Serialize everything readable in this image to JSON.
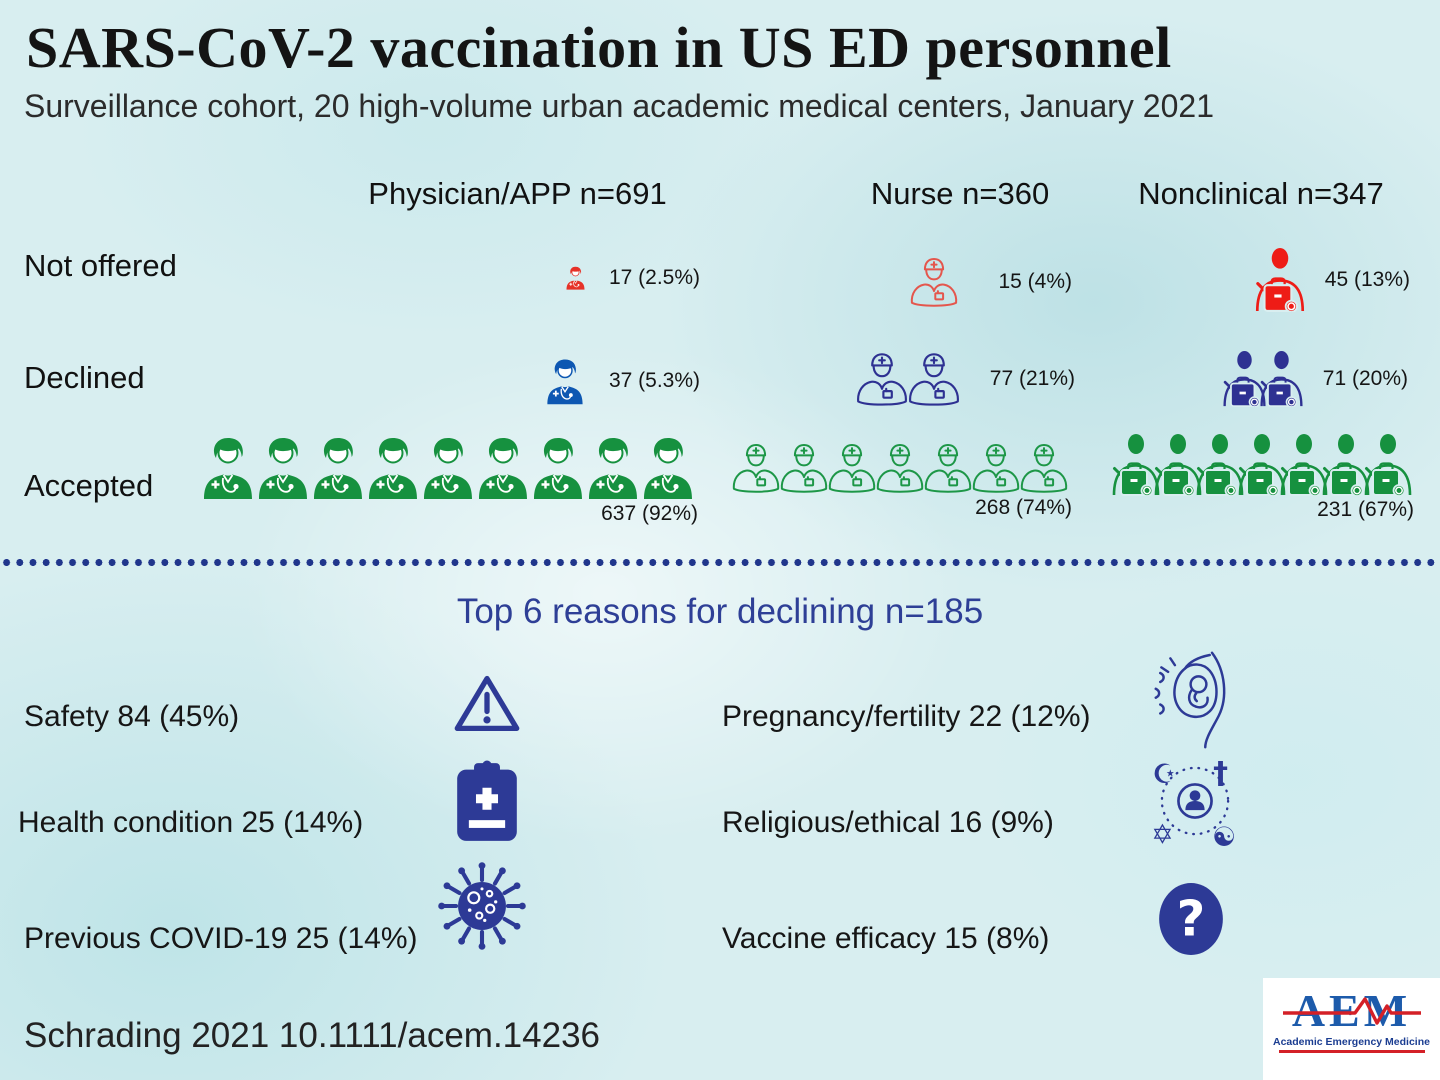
{
  "header": {
    "title": "SARS-CoV-2 vaccination in US ED personnel",
    "subtitle": "Surveillance cohort, 20 high-volume urban academic medical centers, January 2021"
  },
  "table": {
    "columns": [
      {
        "label": "Physician/APP n=691"
      },
      {
        "label": "Nurse n=360"
      },
      {
        "label": "Nonclinical n=347"
      }
    ],
    "rows": [
      {
        "label": "Not offered",
        "cells": [
          {
            "icon": "physician",
            "count": 1,
            "size": 24,
            "color": "#e63228",
            "value": "17 (2.5%)"
          },
          {
            "icon": "nurse",
            "count": 1,
            "size": 52,
            "color": "#e4564d",
            "value": "15 (4%)"
          },
          {
            "icon": "nonclinical",
            "count": 1,
            "size": 64,
            "color": "#ee1c16",
            "value": "45 (13%)"
          }
        ]
      },
      {
        "label": "Declined",
        "cells": [
          {
            "icon": "physician",
            "count": 1,
            "size": 47,
            "color": "#0d57b2",
            "value": "37 (5.3%)"
          },
          {
            "icon": "nurse",
            "count": 2,
            "size": 56,
            "color": "#2e3192",
            "value": "77 (21%)"
          },
          {
            "icon": "nonclinical",
            "count": 2,
            "size": 56,
            "color": "#2e3192",
            "value": "71 (20%)"
          }
        ]
      },
      {
        "label": "Accepted",
        "cells": [
          {
            "icon": "physician",
            "count": 9,
            "size": 64,
            "color": "#16913f",
            "value": "637 (92%)"
          },
          {
            "icon": "nurse",
            "count": 7,
            "size": 52,
            "color": "#1d9747",
            "value": "268 (74%)"
          },
          {
            "icon": "nonclinical",
            "count": 7,
            "size": 62,
            "color": "#16913f",
            "value": "231 (67%)"
          }
        ]
      }
    ]
  },
  "reasons": {
    "heading": "Top 6 reasons for declining n=185",
    "items": [
      {
        "label": "Safety 84 (45%)",
        "icon": "warning-triangle-icon"
      },
      {
        "label": "Pregnancy/fertility 22 (12%)",
        "icon": "fetus-icon"
      },
      {
        "label": "Health condition 25 (14%)",
        "icon": "medical-clipboard-icon"
      },
      {
        "label": "Religious/ethical 16 (9%)",
        "icon": "religions-icon"
      },
      {
        "label": "Previous COVID-19 25 (14%)",
        "icon": "coronavirus-icon"
      },
      {
        "label": "Vaccine efficacy 15 (8%)",
        "icon": "question-mark-icon"
      }
    ]
  },
  "footer": {
    "citation": "Schrading 2021 10.1111/acem.14236",
    "logo": {
      "acronym": "AEM",
      "name": "Academic Emergency Medicine"
    }
  },
  "colors": {
    "background": "#d8eef0",
    "not_offered_red": "#ee1c16",
    "declined_blue": "#2e3192",
    "accepted_green": "#16913f",
    "heading_navy": "#2e3f96",
    "dot_navy": "#20368c",
    "logo_blue": "#1d5bab",
    "logo_red": "#d42027"
  },
  "chart_data": [
    {
      "type": "table",
      "title": "SARS-CoV-2 vaccination in US ED personnel",
      "subtitle": "Surveillance cohort, 20 high-volume urban academic medical centers, January 2021",
      "categories": [
        "Physician/APP",
        "Nurse",
        "Nonclinical"
      ],
      "group_totals": [
        691,
        360,
        347
      ],
      "row_labels": [
        "Not offered",
        "Declined",
        "Accepted"
      ],
      "series": [
        {
          "name": "Physician/APP",
          "values": [
            17,
            37,
            637
          ],
          "percents": [
            "2.5%",
            "5.3%",
            "92%"
          ]
        },
        {
          "name": "Nurse",
          "values": [
            15,
            77,
            268
          ],
          "percents": [
            "4%",
            "21%",
            "74%"
          ]
        },
        {
          "name": "Nonclinical",
          "values": [
            45,
            71,
            231
          ],
          "percents": [
            "13%",
            "20%",
            "67%"
          ]
        }
      ],
      "legend_colors": {
        "Not offered": "red",
        "Declined": "blue",
        "Accepted": "green"
      }
    },
    {
      "type": "bar",
      "title": "Top 6 reasons for declining n=185",
      "total_n": 185,
      "categories": [
        "Safety",
        "Health condition",
        "Previous COVID-19",
        "Pregnancy/fertility",
        "Religious/ethical",
        "Vaccine efficacy"
      ],
      "values": [
        84,
        25,
        25,
        22,
        16,
        15
      ],
      "percents": [
        "45%",
        "14%",
        "14%",
        "12%",
        "9%",
        "8%"
      ]
    }
  ]
}
